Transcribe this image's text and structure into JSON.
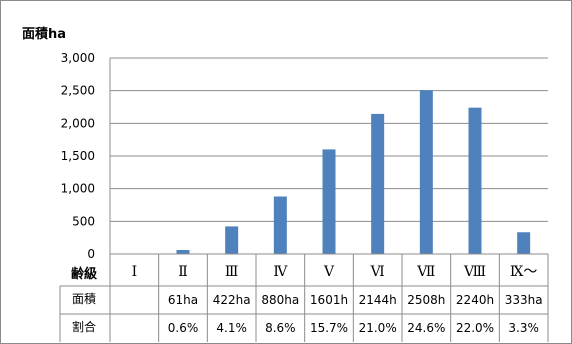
{
  "chart_data": {
    "type": "bar",
    "title": "面積ha",
    "categories": [
      "Ⅰ",
      "Ⅱ",
      "Ⅲ",
      "Ⅳ",
      "Ⅴ",
      "Ⅵ",
      "Ⅶ",
      "Ⅷ",
      "Ⅸ～"
    ],
    "values": [
      0,
      61,
      422,
      880,
      1601,
      2144,
      2508,
      2240,
      333
    ],
    "ylim": [
      0,
      3000
    ],
    "yticks": [
      "0",
      "500",
      "1,000",
      "1,500",
      "2,000",
      "2,500",
      "3,000"
    ],
    "grid": true,
    "bar_color": "#4F81BD",
    "table": {
      "header_label": "齢級",
      "rows": [
        {
          "label": "面積",
          "cells": [
            "",
            "61ha",
            "422ha",
            "880ha",
            "1601h",
            "2144h",
            "2508h",
            "2240h",
            "333ha"
          ]
        },
        {
          "label": "割合",
          "cells": [
            "",
            "0.6%",
            "4.1%",
            "8.6%",
            "15.7%",
            "21.0%",
            "24.6%",
            "22.0%",
            "3.3%"
          ]
        }
      ]
    }
  }
}
